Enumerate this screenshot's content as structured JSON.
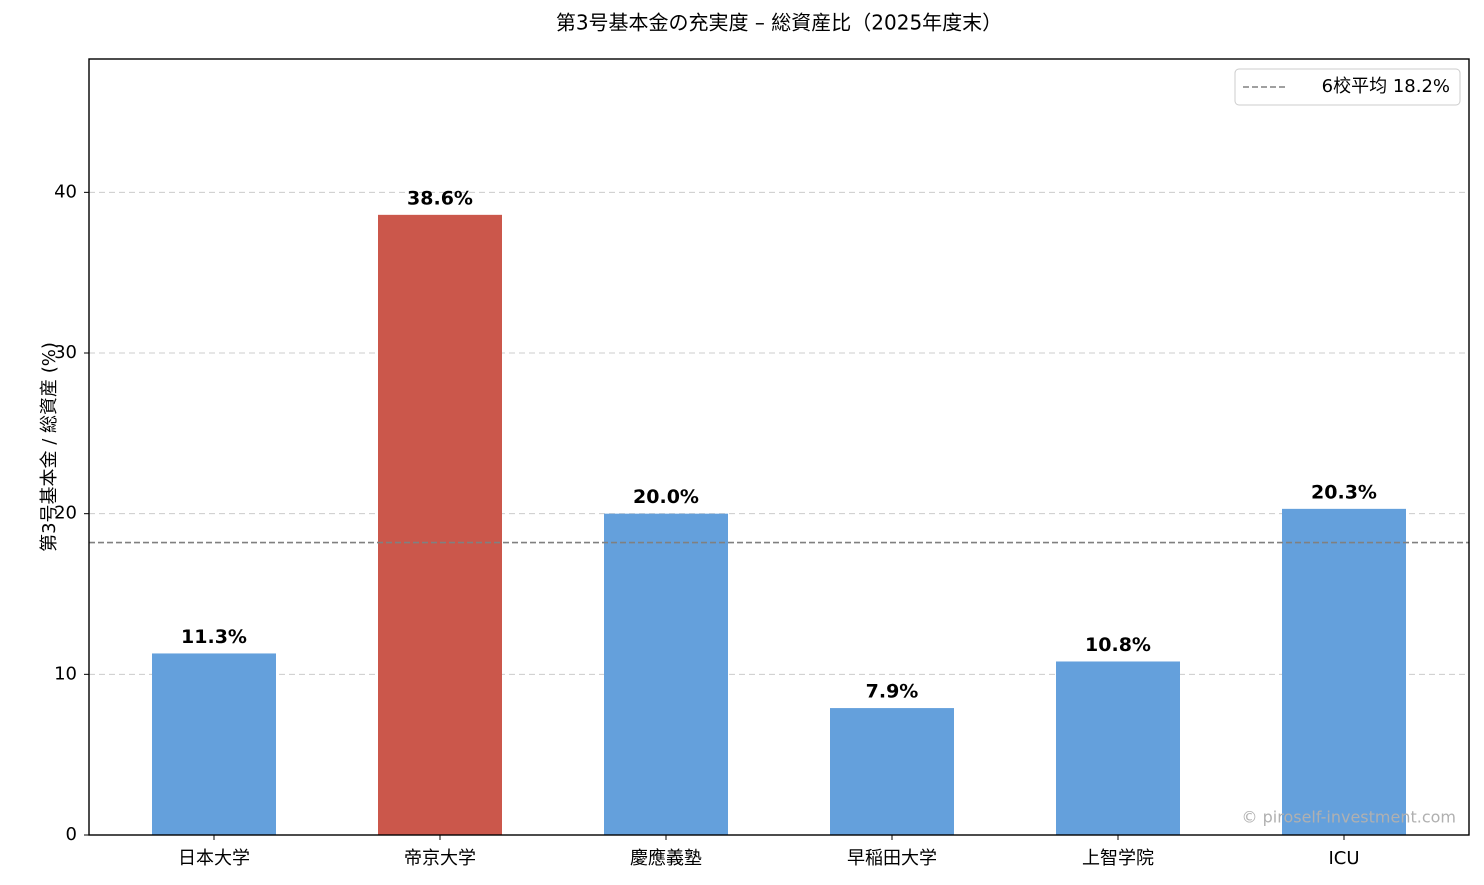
{
  "chart_data": {
    "type": "bar",
    "title": "第3号基本金の充実度 – 総資産比（2025年度末）",
    "y_label": "第3号基本金 / 総資産 (%)",
    "categories": [
      "日本大学",
      "帝京大学",
      "慶應義塾",
      "早稲田大学",
      "上智学院",
      "ICU"
    ],
    "values": [
      11.3,
      38.6,
      20.0,
      7.9,
      10.8,
      20.3
    ],
    "value_labels": [
      "11.3%",
      "38.6%",
      "20.0%",
      "7.9%",
      "10.8%",
      "20.3%"
    ],
    "colors": [
      "#64a0dc",
      "#cb574b",
      "#64a0dc",
      "#64a0dc",
      "#64a0dc",
      "#64a0dc"
    ],
    "reference_line": {
      "value": 18.2,
      "label": "6校平均 18.2%",
      "color": "#808080"
    },
    "ylim": [
      0,
      48.3
    ],
    "yticks": [
      0,
      10,
      20,
      30,
      40
    ],
    "grid": true,
    "legend_position": "upper right",
    "watermark": "© piroself-investment.com"
  }
}
